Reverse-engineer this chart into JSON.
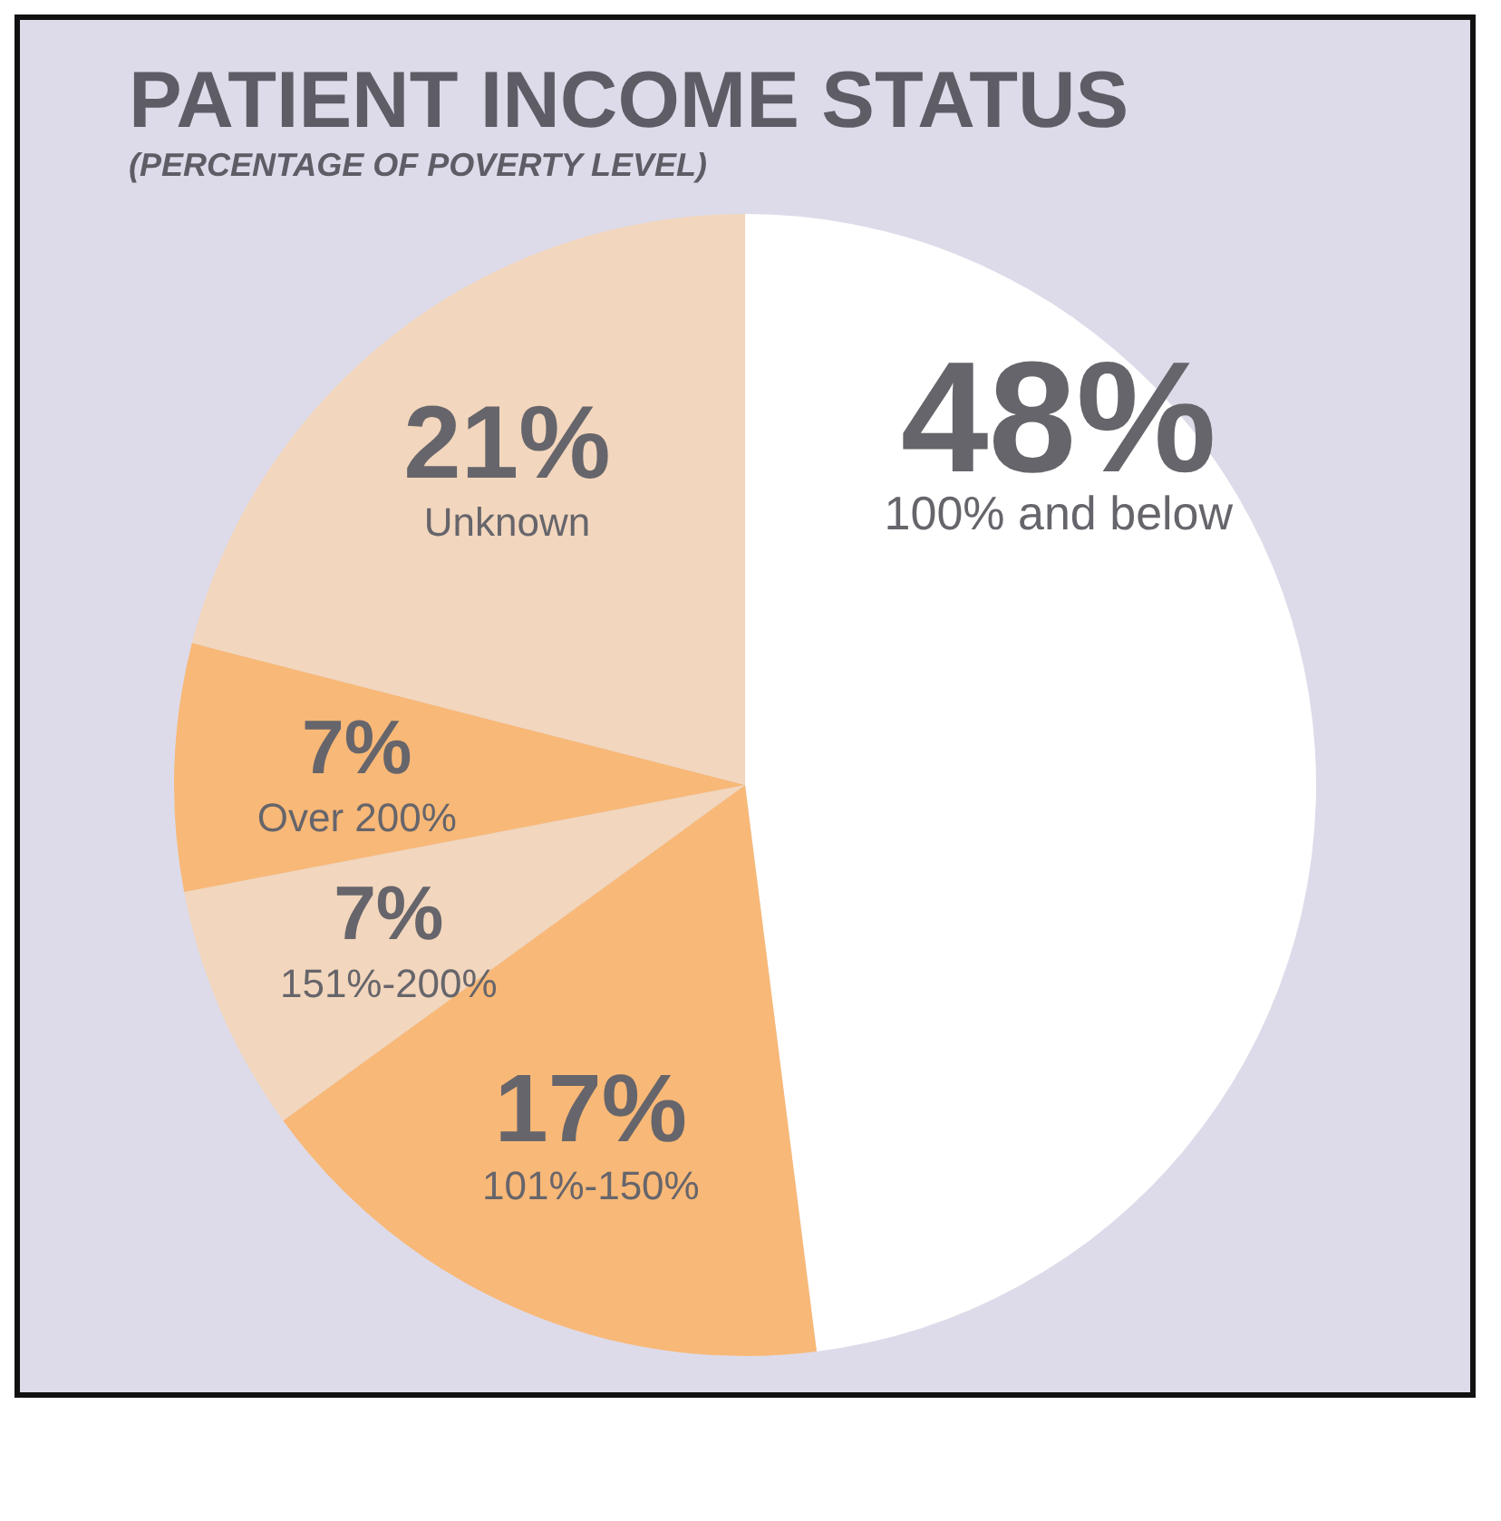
{
  "chart_data": {
    "type": "pie",
    "title": "PATIENT INCOME STATUS",
    "subtitle": "(PERCENTAGE OF POVERTY LEVEL)",
    "categories": [
      "100% and below",
      "101%-150%",
      "151%-200%",
      "Over 200%",
      "Unknown"
    ],
    "values": [
      48,
      17,
      7,
      7,
      21
    ],
    "colors": [
      "#ffffff",
      "#f8b877",
      "#f2d6bd",
      "#f8b877",
      "#f2d6bd"
    ],
    "value_labels": [
      "48%",
      "17%",
      "7%",
      "7%",
      "21%"
    ],
    "legend": false
  }
}
